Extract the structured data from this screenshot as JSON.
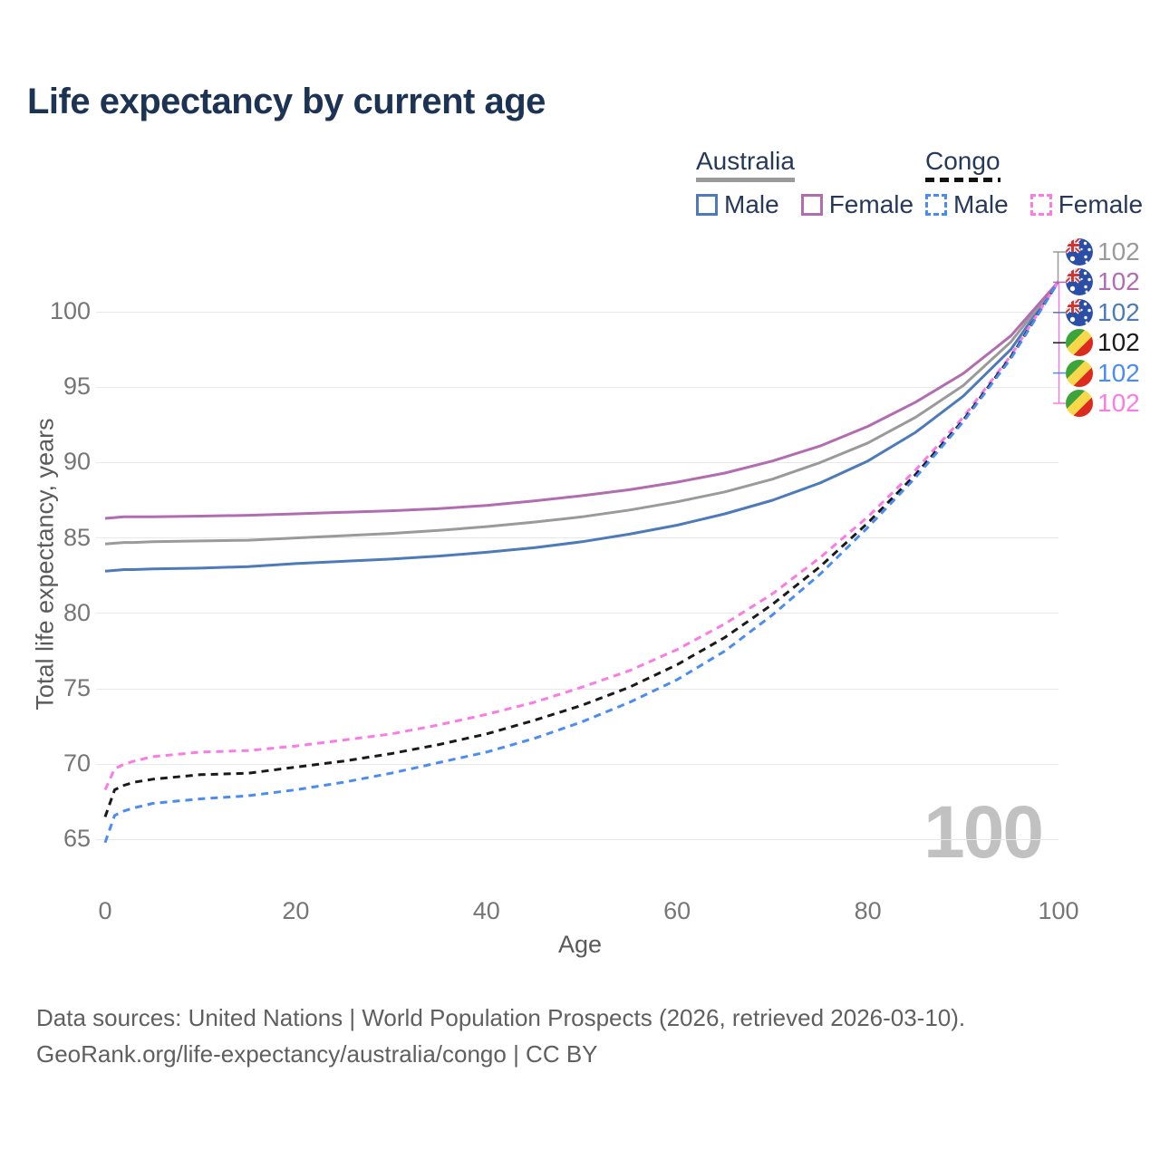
{
  "title": "Life expectancy by current age",
  "watermark": "100",
  "legend": {
    "groups": [
      {
        "label": "Australia",
        "line_style": "solid",
        "underline_color": "#9a9a9a",
        "items": [
          {
            "label": "Male",
            "color": "#4d7ab8",
            "dashed": false
          },
          {
            "label": "Female",
            "color": "#b26cb0",
            "dashed": false
          }
        ]
      },
      {
        "label": "Congo",
        "line_style": "dashed",
        "underline_color": "#111111",
        "items": [
          {
            "label": "Male",
            "color": "#4a8cf2",
            "dashed": true
          },
          {
            "label": "Female",
            "color": "#fb7be4",
            "dashed": true
          }
        ]
      }
    ]
  },
  "chart_data": {
    "type": "line",
    "title": "Life expectancy by current age",
    "xlabel": "Age",
    "ylabel": "Total life expectancy, years",
    "xlim": [
      0,
      100
    ],
    "ylim": [
      63.5,
      103
    ],
    "x_ticks": [
      0,
      20,
      40,
      60,
      80,
      100
    ],
    "y_ticks": [
      65,
      70,
      75,
      80,
      85,
      90,
      95,
      100
    ],
    "grid": "horizontal",
    "legend_position": "top-right",
    "x": [
      0,
      1,
      2,
      3,
      5,
      10,
      15,
      20,
      25,
      30,
      35,
      40,
      45,
      50,
      55,
      60,
      65,
      70,
      75,
      80,
      85,
      90,
      95,
      100
    ],
    "series": [
      {
        "name": "Australia Male",
        "country": "Australia",
        "sex": "Male",
        "color": "#4d7ab8",
        "dashed": false,
        "values": [
          82.8,
          82.85,
          82.9,
          82.9,
          82.95,
          83.0,
          83.1,
          83.3,
          83.45,
          83.6,
          83.8,
          84.05,
          84.35,
          84.75,
          85.25,
          85.85,
          86.6,
          87.5,
          88.65,
          90.1,
          92.0,
          94.4,
          97.5,
          102
        ]
      },
      {
        "name": "Australia Both",
        "country": "Australia",
        "sex": "Both",
        "color": "#9a9a9a",
        "dashed": false,
        "values": [
          84.6,
          84.65,
          84.7,
          84.7,
          84.75,
          84.8,
          84.85,
          85.0,
          85.15,
          85.3,
          85.5,
          85.75,
          86.05,
          86.4,
          86.85,
          87.4,
          88.05,
          88.9,
          90.0,
          91.3,
          93.0,
          95.1,
          98.0,
          102
        ]
      },
      {
        "name": "Australia Female",
        "country": "Australia",
        "sex": "Female",
        "color": "#b26cb0",
        "dashed": false,
        "values": [
          86.3,
          86.35,
          86.4,
          86.4,
          86.4,
          86.45,
          86.5,
          86.6,
          86.7,
          86.8,
          86.95,
          87.15,
          87.45,
          87.8,
          88.2,
          88.7,
          89.3,
          90.1,
          91.1,
          92.4,
          94.0,
          95.9,
          98.4,
          102
        ]
      },
      {
        "name": "Congo Female",
        "country": "Congo",
        "sex": "Female",
        "color": "#fb7be4",
        "dashed": true,
        "values": [
          68.3,
          69.7,
          70.0,
          70.2,
          70.5,
          70.8,
          70.9,
          71.2,
          71.6,
          72.0,
          72.6,
          73.3,
          74.1,
          75.1,
          76.2,
          77.6,
          79.3,
          81.3,
          83.7,
          86.4,
          89.5,
          93.0,
          97.1,
          102
        ]
      },
      {
        "name": "Congo Both",
        "country": "Congo",
        "sex": "Both",
        "color": "#1a1a1a",
        "dashed": true,
        "values": [
          66.5,
          68.3,
          68.6,
          68.8,
          69.0,
          69.3,
          69.4,
          69.8,
          70.2,
          70.7,
          71.3,
          72.0,
          72.9,
          73.9,
          75.1,
          76.6,
          78.4,
          80.6,
          83.1,
          86.0,
          89.2,
          92.8,
          97.0,
          102
        ]
      },
      {
        "name": "Congo Male",
        "country": "Congo",
        "sex": "Male",
        "color": "#4a8cf2",
        "dashed": true,
        "values": [
          64.8,
          66.6,
          66.9,
          67.1,
          67.4,
          67.7,
          67.9,
          68.3,
          68.8,
          69.4,
          70.1,
          70.8,
          71.7,
          72.8,
          74.1,
          75.6,
          77.5,
          79.9,
          82.6,
          85.7,
          89.0,
          92.7,
          96.9,
          102
        ]
      }
    ],
    "end_labels": [
      {
        "flag": "australia",
        "label": "102",
        "color": "#9a9a9a"
      },
      {
        "flag": "australia",
        "label": "102",
        "color": "#b26cb0"
      },
      {
        "flag": "australia",
        "label": "102",
        "color": "#4d7ab8"
      },
      {
        "flag": "congo",
        "label": "102",
        "color": "#1a1a1a"
      },
      {
        "flag": "congo",
        "label": "102",
        "color": "#4a8cf2"
      },
      {
        "flag": "congo",
        "label": "102",
        "color": "#fb7be4"
      }
    ]
  },
  "footer": {
    "line1": "Data sources: United Nations | World Population Prospects (2026, retrieved 2026-03-10).",
    "line2": "GeoRank.org/life-expectancy/australia/congo | CC BY"
  }
}
